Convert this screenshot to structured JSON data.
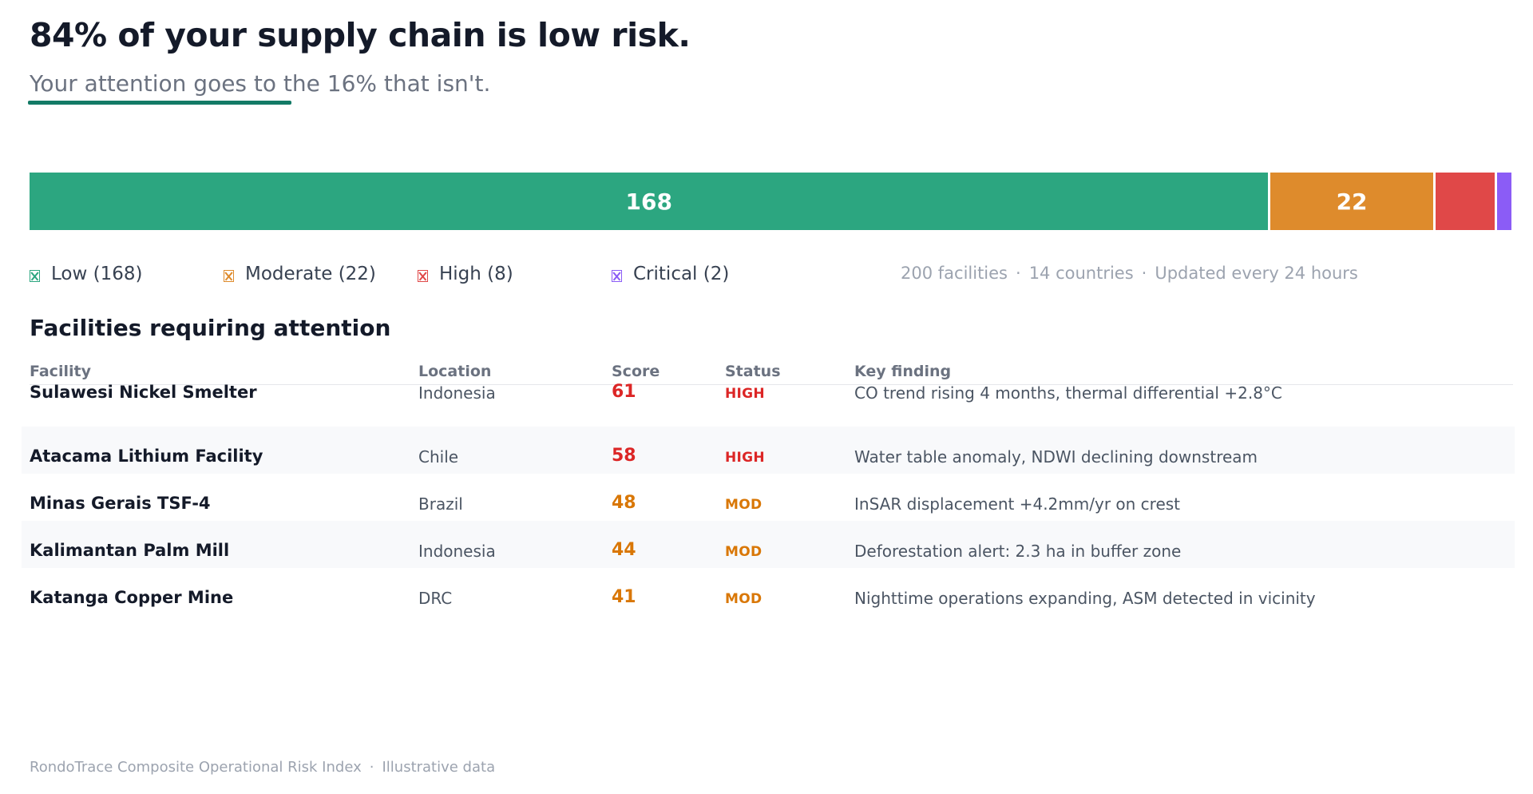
{
  "header": {
    "headline": "84% of your supply chain is low risk.",
    "subhead": "Your attention goes to the 16% that isn't."
  },
  "distribution": {
    "total": 200,
    "segments": [
      {
        "key": "low",
        "label": "Low (168)",
        "count": 168,
        "bar_label": "168",
        "color": "#2ca680"
      },
      {
        "key": "moderate",
        "label": "Moderate (22)",
        "count": 22,
        "bar_label": "22",
        "color": "#de8b2c"
      },
      {
        "key": "high",
        "label": "High (8)",
        "count": 8,
        "bar_label": "",
        "color": "#e04848"
      },
      {
        "key": "critical",
        "label": "Critical (2)",
        "count": 2,
        "bar_label": "",
        "color": "#8b5cf6"
      }
    ]
  },
  "meta": {
    "facilities": "200 facilities",
    "countries": "14 countries",
    "updated": "Updated every 24 hours"
  },
  "section": {
    "title": "Facilities requiring attention"
  },
  "table": {
    "columns": [
      "Facility",
      "Location",
      "Score",
      "Status",
      "Key finding"
    ],
    "rows": [
      {
        "facility": "Sulawesi Nickel Smelter",
        "location": "Indonesia",
        "score": "61",
        "status": "HIGH",
        "finding": "CO trend rising 4 months, thermal differential +2.8°C"
      },
      {
        "facility": "Atacama Lithium Facility",
        "location": "Chile",
        "score": "58",
        "status": "HIGH",
        "finding": "Water table anomaly, NDWI declining downstream"
      },
      {
        "facility": "Minas Gerais TSF-4",
        "location": "Brazil",
        "score": "48",
        "status": "MOD",
        "finding": "InSAR displacement +4.2mm/yr on crest"
      },
      {
        "facility": "Kalimantan Palm Mill",
        "location": "Indonesia",
        "score": "44",
        "status": "MOD",
        "finding": "Deforestation alert: 2.3 ha in buffer zone"
      },
      {
        "facility": "Katanga Copper Mine",
        "location": "DRC",
        "score": "41",
        "status": "MOD",
        "finding": "Nighttime operations expanding, ASM detected in vicinity"
      }
    ]
  },
  "status_colors": {
    "HIGH": "#dc2626",
    "MOD": "#d97706"
  },
  "footer": {
    "source": "RondoTrace Composite Operational Risk Index",
    "note": "Illustrative data"
  }
}
